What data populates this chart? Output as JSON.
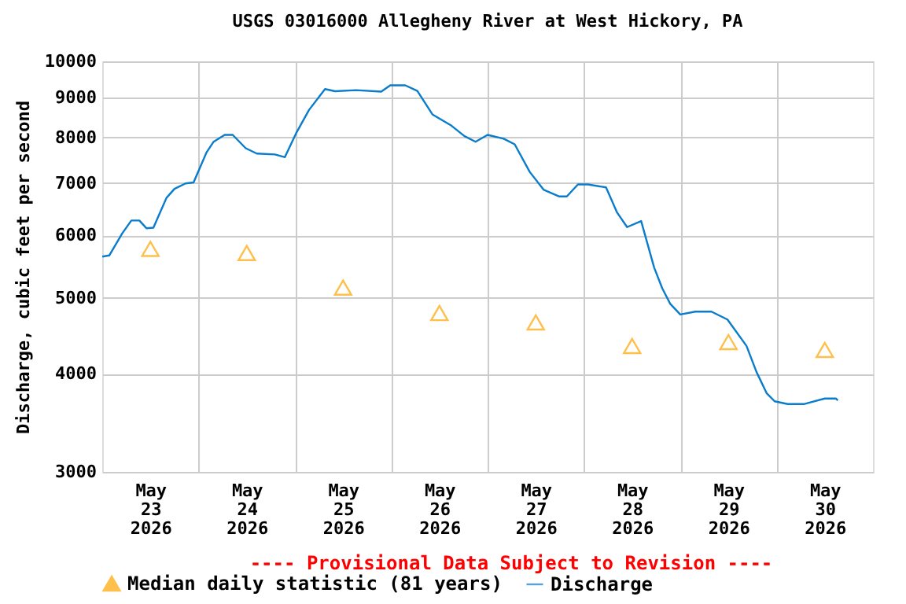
{
  "chart_data": {
    "type": "line",
    "title": "USGS 03016000 Allegheny River at West Hickory, PA",
    "ylabel": "Discharge, cubic feet per second",
    "log": true,
    "grid": true,
    "legend": "bottom",
    "xlim": [
      "2026-05-23T00:00",
      "2026-05-31T00:00"
    ],
    "xticks": [
      {
        "value": "2026-05-23T12:00",
        "label": "May\n23\n2026"
      },
      {
        "value": "2026-05-24T12:00",
        "label": "May\n24\n2026"
      },
      {
        "value": "2026-05-25T12:00",
        "label": "May\n25\n2026"
      },
      {
        "value": "2026-05-26T12:00",
        "label": "May\n26\n2026"
      },
      {
        "value": "2026-05-27T12:00",
        "label": "May\n27\n2026"
      },
      {
        "value": "2026-05-28T12:00",
        "label": "May\n28\n2026"
      },
      {
        "value": "2026-05-29T12:00",
        "label": "May\n29\n2026"
      },
      {
        "value": "2026-05-30T12:00",
        "label": "May\n30\n2026"
      },
      {
        "value": "2026-05-24T00:00",
        "label": null
      },
      {
        "value": "2026-05-25T00:00",
        "label": null
      },
      {
        "value": "2026-05-26T00:00",
        "label": null
      },
      {
        "value": "2026-05-27T00:00",
        "label": null
      },
      {
        "value": "2026-05-28T00:00",
        "label": null
      },
      {
        "value": "2026-05-29T00:00",
        "label": null
      },
      {
        "value": "2026-05-30T00:00",
        "label": null
      }
    ],
    "ylim": [
      3000,
      10000
    ],
    "yticks": [
      3000,
      4000,
      5000,
      6000,
      7000,
      8000,
      9000,
      10000
    ],
    "annotations": [
      "---- Provisional Data Subject to Revision ----"
    ],
    "series": [
      {
        "name": "Median daily statistic (81 years)",
        "type": "scatter",
        "marker": "triangle",
        "color": "#ffa500",
        "x": [
          "2026-05-23T12:00",
          "2026-05-24T12:00",
          "2026-05-25T12:00",
          "2026-05-26T12:00",
          "2026-05-27T12:00",
          "2026-05-28T12:00",
          "2026-05-29T12:00",
          "2026-05-30T12:00"
        ],
        "values": [
          5770,
          5700,
          5150,
          4780,
          4650,
          4340,
          4390,
          4290
        ]
      },
      {
        "name": "Discharge",
        "marker": "none",
        "color": "#0a7ccc",
        "x": [
          "2026-05-23T00:00",
          "2026-05-23T01:45",
          "2026-05-23T05:00",
          "2026-05-23T07:15",
          "2026-05-23T09:15",
          "2026-05-23T11:00",
          "2026-05-23T12:45",
          "2026-05-23T16:00",
          "2026-05-23T18:00",
          "2026-05-23T20:45",
          "2026-05-23T22:45",
          "2026-05-24T02:00",
          "2026-05-24T03:45",
          "2026-05-24T06:30",
          "2026-05-24T08:30",
          "2026-05-24T11:45",
          "2026-05-24T14:30",
          "2026-05-24T19:00",
          "2026-05-24T21:30",
          "2026-05-25T00:15",
          "2026-05-25T03:30",
          "2026-05-25T07:30",
          "2026-05-25T10:00",
          "2026-05-25T15:15",
          "2026-05-25T21:30",
          "2026-05-25T23:45",
          "2026-05-26T03:30",
          "2026-05-26T06:30",
          "2026-05-26T10:15",
          "2026-05-26T15:00",
          "2026-05-26T18:15",
          "2026-05-26T21:00",
          "2026-05-27T00:00",
          "2026-05-27T04:00",
          "2026-05-27T06:45",
          "2026-05-27T10:30",
          "2026-05-27T14:00",
          "2026-05-27T17:45",
          "2026-05-27T19:45",
          "2026-05-27T22:30",
          "2026-05-28T01:00",
          "2026-05-28T05:30",
          "2026-05-28T08:15",
          "2026-05-28T10:45",
          "2026-05-28T14:15",
          "2026-05-28T17:30",
          "2026-05-28T19:30",
          "2026-05-28T21:30",
          "2026-05-29T00:00",
          "2026-05-29T03:45",
          "2026-05-29T07:45",
          "2026-05-29T11:45",
          "2026-05-29T16:30",
          "2026-05-29T19:00",
          "2026-05-29T21:30",
          "2026-05-29T23:30",
          "2026-05-30T02:45",
          "2026-05-30T06:45",
          "2026-05-30T12:00",
          "2026-05-30T14:45",
          "2026-05-30T15:15"
        ],
        "values": [
          5640,
          5660,
          6040,
          6270,
          6270,
          6130,
          6140,
          6700,
          6880,
          6990,
          7010,
          7660,
          7900,
          8060,
          8060,
          7750,
          7630,
          7610,
          7550,
          8090,
          8670,
          9220,
          9160,
          9190,
          9150,
          9320,
          9320,
          9170,
          8560,
          8280,
          8030,
          7900,
          8060,
          7970,
          7840,
          7230,
          6860,
          6730,
          6730,
          6970,
          6970,
          6910,
          6420,
          6150,
          6260,
          5460,
          5140,
          4910,
          4760,
          4800,
          4800,
          4690,
          4340,
          4020,
          3780,
          3690,
          3660,
          3660,
          3720,
          3720,
          3700
        ]
      }
    ]
  }
}
